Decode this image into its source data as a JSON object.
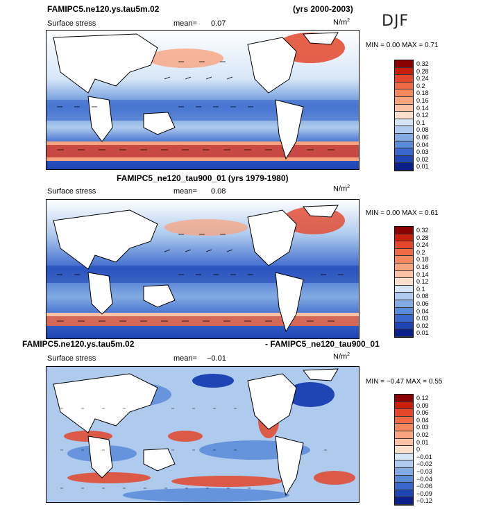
{
  "header": {
    "title_top": "FAMIPC5.ne120.ys.tau5m.02",
    "years_top": "(yrs 2000-2003)",
    "season": "DJF"
  },
  "panels": [
    {
      "id": "p1",
      "field_label": "Surface stress",
      "mean_label": "mean=",
      "mean_value": "0.07",
      "units": "N/m",
      "units_sup": "2",
      "minmax": "MIN =   0.00  MAX =   0.71",
      "colorbar": {
        "labels": [
          "0.32",
          "0.28",
          "0.24",
          "0.2",
          "0.18",
          "0.16",
          "0.14",
          "0.12",
          "0.1",
          "0.08",
          "0.06",
          "0.04",
          "0.03",
          "0.02",
          "0.01"
        ],
        "colors": [
          "#8b0000",
          "#c81e0a",
          "#e3462a",
          "#f06a45",
          "#f5885f",
          "#f8a47f",
          "#fbc2a5",
          "#fde0cc",
          "#d6e6f7",
          "#aecbee",
          "#82abe3",
          "#5a8bd9",
          "#3a67cc",
          "#1f45b5",
          "#0a1f8a"
        ]
      }
    },
    {
      "id": "p2",
      "title": "FAMIPC5_ne120_tau900_01 (yrs 1979-1980)",
      "field_label": "Surface stress",
      "mean_label": "mean=",
      "mean_value": "0.08",
      "units": "N/m",
      "units_sup": "2",
      "minmax": "MIN =   0.00  MAX =   0.61",
      "colorbar": {
        "labels": [
          "0.32",
          "0.28",
          "0.24",
          "0.2",
          "0.18",
          "0.16",
          "0.14",
          "0.12",
          "0.1",
          "0.08",
          "0.06",
          "0.04",
          "0.03",
          "0.02",
          "0.01"
        ],
        "colors": [
          "#8b0000",
          "#c81e0a",
          "#e3462a",
          "#f06a45",
          "#f5885f",
          "#f8a47f",
          "#fbc2a5",
          "#fde0cc",
          "#d6e6f7",
          "#aecbee",
          "#82abe3",
          "#5a8bd9",
          "#3a67cc",
          "#1f45b5",
          "#0a1f8a"
        ]
      }
    },
    {
      "id": "p3",
      "title_left": "FAMIPC5.ne120.ys.tau5m.02",
      "title_right": "- FAMIPC5_ne120_tau900_01",
      "field_label": "Surface stress",
      "mean_label": "mean=",
      "mean_value": "−0.01",
      "units": "N/m",
      "units_sup": "2",
      "minmax": "MIN =  −0.47  MAX =   0.55",
      "colorbar": {
        "labels": [
          "0.12",
          "0.09",
          "0.06",
          "0.04",
          "0.03",
          "0.02",
          "0.01",
          "0",
          "−0.01",
          "−0.02",
          "−0.03",
          "−0.04",
          "−0.06",
          "−0.09",
          "−0.12"
        ],
        "colors": [
          "#8b0000",
          "#c81e0a",
          "#e3462a",
          "#f06a45",
          "#f5885f",
          "#f8a47f",
          "#fbc2a5",
          "#fde0cc",
          "#d6e6f7",
          "#aecbee",
          "#82abe3",
          "#5a8bd9",
          "#3a67cc",
          "#1f45b5",
          "#0a1f8a"
        ]
      }
    }
  ]
}
